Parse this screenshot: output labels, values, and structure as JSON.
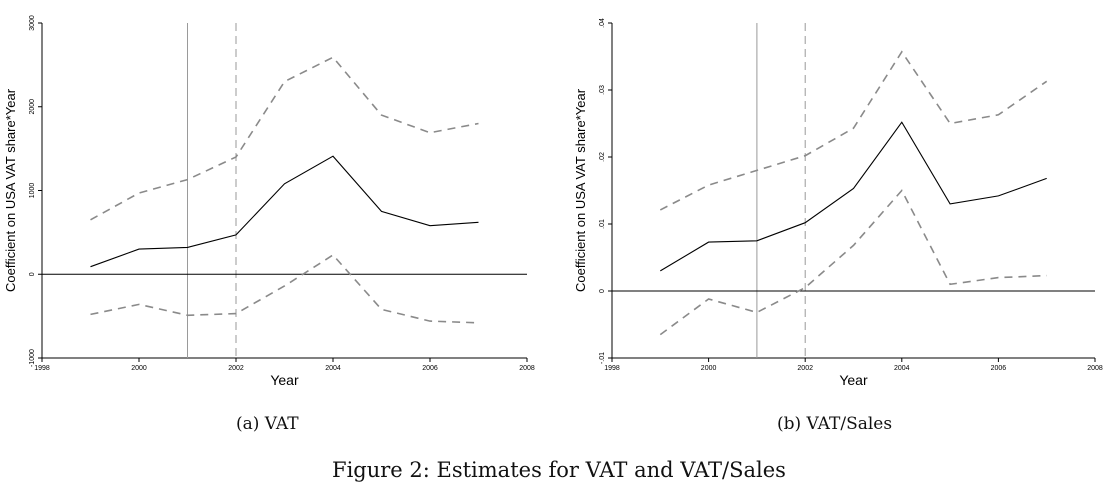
{
  "figure_caption": "Figure 2: Estimates for VAT and VAT/Sales",
  "chart_data": [
    {
      "type": "line",
      "caption": "(a) VAT",
      "xlabel": "Year",
      "ylabel": "Coefficient on USA VAT share*Year",
      "xlim": [
        1998,
        2008
      ],
      "ylim": [
        -1000,
        3000
      ],
      "xticks": [
        1998,
        2000,
        2002,
        2004,
        2006,
        2008
      ],
      "xtick_labels": [
        "1998",
        "2000",
        "2002",
        "2004",
        "2006",
        "2008"
      ],
      "yticks": [
        -1000,
        0,
        1000,
        2000,
        3000
      ],
      "ytick_labels": [
        "-1000",
        "0",
        "1000",
        "2000",
        "3000"
      ],
      "reference_lines": {
        "vertical_solid": 2001,
        "vertical_dashed": 2002,
        "horizontal": 0
      },
      "x": [
        1999,
        2000,
        2001,
        2002,
        2003,
        2004,
        2005,
        2006,
        2007
      ],
      "series": [
        {
          "role": "estimate",
          "style": "solid",
          "color": "#000000",
          "values": [
            90,
            300,
            320,
            470,
            1080,
            1410,
            750,
            580,
            620
          ]
        },
        {
          "role": "upper",
          "style": "dashed",
          "color": "#8a8a8a",
          "values": [
            650,
            970,
            1130,
            1400,
            2300,
            2590,
            1900,
            1690,
            1800
          ]
        },
        {
          "role": "lower",
          "style": "dashed",
          "color": "#8a8a8a",
          "values": [
            -480,
            -360,
            -490,
            -470,
            -140,
            230,
            -420,
            -560,
            -580
          ]
        }
      ]
    },
    {
      "type": "line",
      "caption": "(b) VAT/Sales",
      "xlabel": "Year",
      "ylabel": "Coefficient on USA VAT share*Year",
      "xlim": [
        1998,
        2008
      ],
      "ylim": [
        -0.01,
        0.04
      ],
      "xticks": [
        1998,
        2000,
        2002,
        2004,
        2006,
        2008
      ],
      "xtick_labels": [
        "1998",
        "2000",
        "2002",
        "2004",
        "2006",
        "2008"
      ],
      "yticks": [
        -0.01,
        0,
        0.01,
        0.02,
        0.03,
        0.04
      ],
      "ytick_labels": [
        "-.01",
        "0",
        ".01",
        ".02",
        ".03",
        ".04"
      ],
      "reference_lines": {
        "vertical_solid": 2001,
        "vertical_dashed": 2002,
        "horizontal": 0
      },
      "x": [
        1999,
        2000,
        2001,
        2002,
        2003,
        2004,
        2005,
        2006,
        2007
      ],
      "series": [
        {
          "role": "estimate",
          "style": "solid",
          "color": "#000000",
          "values": [
            0.003,
            0.0073,
            0.0075,
            0.0102,
            0.0153,
            0.0252,
            0.013,
            0.0142,
            0.0168
          ]
        },
        {
          "role": "upper",
          "style": "dashed",
          "color": "#8a8a8a",
          "values": [
            0.0121,
            0.0158,
            0.018,
            0.0202,
            0.0243,
            0.0357,
            0.025,
            0.0263,
            0.0313
          ]
        },
        {
          "role": "lower",
          "style": "dashed",
          "color": "#8a8a8a",
          "values": [
            -0.0065,
            -0.0012,
            -0.0032,
            0.0005,
            0.0068,
            0.015,
            0.001,
            0.002,
            0.0023
          ]
        }
      ]
    }
  ]
}
